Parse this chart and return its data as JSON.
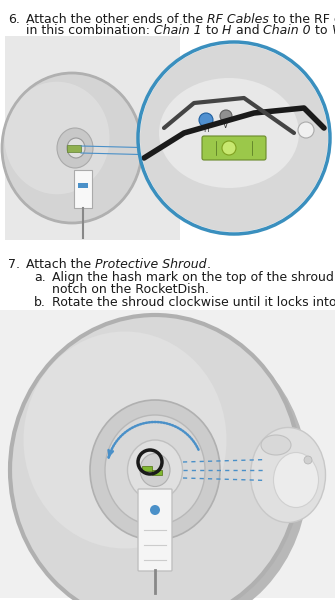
{
  "background_color": "#ffffff",
  "figsize": [
    3.35,
    6.0
  ],
  "dpi": 100,
  "text_color": "#1a1a1a",
  "font_size": 9.0,
  "step6_num": "6.",
  "step6_line1_parts": [
    [
      "Attach the other ends of the ",
      false
    ],
    [
      "RF Cables",
      true
    ],
    [
      " to the RF connectors",
      false
    ]
  ],
  "step6_line2_parts": [
    [
      "in this combination: ",
      false
    ],
    [
      "Chain 1",
      true
    ],
    [
      " to ",
      false
    ],
    [
      "H",
      true
    ],
    [
      " and ",
      false
    ],
    [
      "Chain 0",
      true
    ],
    [
      " to ",
      false
    ],
    [
      "V",
      true
    ],
    [
      ".",
      false
    ]
  ],
  "step7_num": "7.",
  "step7_line_parts": [
    [
      "Attach the ",
      false
    ],
    [
      "Protective Shroud",
      true
    ],
    [
      ".",
      false
    ]
  ],
  "step7_suba_letter": "a.",
  "step7_suba_line1": "Align the hash mark on the top of the shroud with the",
  "step7_suba_line2": "notch on the RocketDish.",
  "step7_subb_letter": "b.",
  "step7_subb_line": "Rotate the shroud clockwise until it locks into place.",
  "img1_bg": "#f5f5f5",
  "img1_dish_color": "#d0d0d0",
  "img1_dish_light": "#e8e8e8",
  "img2_bg": "#f0f0f0",
  "zoom_border": "#3a8fbe",
  "blue_dot": "#4a90c8",
  "green_level": "#8fba3a",
  "cable_dark": "#2a2a2a",
  "cable_mid": "#888888"
}
